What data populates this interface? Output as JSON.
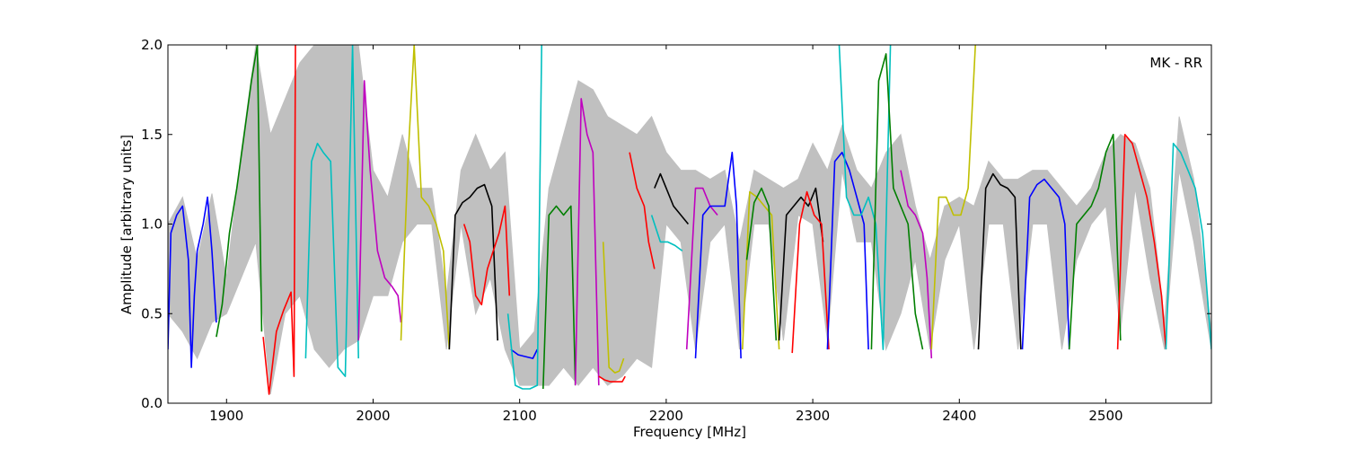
{
  "chart_data": {
    "type": "line",
    "xlabel": "Frequency [MHz]",
    "ylabel": "Amplitude [arbitrary units]",
    "annotation": "MK - RR",
    "xlim": [
      1860,
      2572
    ],
    "ylim": [
      0,
      2.0
    ],
    "xticks": [
      1900,
      2000,
      2100,
      2200,
      2300,
      2400,
      2500
    ],
    "yticks": [
      0.0,
      0.5,
      1.0,
      1.5,
      2.0
    ],
    "xtick_labels": [
      "1900",
      "2000",
      "2100",
      "2200",
      "2300",
      "2400",
      "2500"
    ],
    "ytick_labels": [
      "0.0",
      "0.5",
      "1.0",
      "1.5",
      "2.0"
    ],
    "grid": false,
    "envelope_color": "#c0c0c0",
    "envelope": {
      "x": [
        1860,
        1870,
        1880,
        1890,
        1900,
        1910,
        1920,
        1930,
        1940,
        1950,
        1960,
        1970,
        1980,
        1990,
        2000,
        2010,
        2020,
        2030,
        2040,
        2050,
        2060,
        2070,
        2080,
        2090,
        2100,
        2110,
        2120,
        2130,
        2140,
        2150,
        2160,
        2170,
        2180,
        2190,
        2200,
        2210,
        2220,
        2230,
        2240,
        2250,
        2260,
        2270,
        2280,
        2290,
        2300,
        2310,
        2320,
        2330,
        2340,
        2350,
        2360,
        2370,
        2380,
        2390,
        2400,
        2410,
        2420,
        2430,
        2440,
        2450,
        2460,
        2470,
        2480,
        2490,
        2500,
        2510,
        2520,
        2530,
        2540,
        2550,
        2560,
        2572
      ],
      "upper": [
        1.0,
        1.15,
        0.8,
        1.17,
        0.7,
        1.4,
        2.0,
        1.5,
        1.7,
        1.9,
        2.0,
        2.0,
        2.0,
        2.0,
        1.3,
        1.15,
        1.5,
        1.2,
        1.2,
        0.6,
        1.3,
        1.5,
        1.3,
        1.4,
        0.3,
        0.4,
        1.2,
        1.5,
        1.8,
        1.75,
        1.6,
        1.55,
        1.5,
        1.6,
        1.4,
        1.3,
        1.3,
        1.25,
        1.3,
        0.9,
        1.3,
        1.25,
        1.2,
        1.25,
        1.45,
        1.3,
        1.55,
        1.3,
        1.2,
        1.4,
        1.5,
        1.1,
        0.8,
        1.1,
        1.15,
        1.1,
        1.35,
        1.25,
        1.25,
        1.3,
        1.3,
        1.2,
        1.1,
        1.2,
        1.4,
        1.5,
        1.45,
        1.2,
        0.45,
        1.6,
        1.25,
        0.4
      ],
      "lower": [
        0.5,
        0.4,
        0.25,
        0.45,
        0.5,
        0.7,
        0.9,
        0.05,
        0.5,
        0.6,
        0.3,
        0.2,
        0.3,
        0.35,
        0.6,
        0.6,
        0.9,
        1.0,
        1.0,
        0.3,
        1.0,
        0.5,
        0.7,
        0.3,
        0.1,
        0.1,
        0.1,
        0.2,
        0.1,
        0.2,
        0.1,
        0.15,
        0.25,
        0.2,
        1.0,
        0.9,
        0.3,
        0.9,
        1.0,
        0.3,
        1.0,
        1.0,
        0.35,
        1.05,
        1.0,
        0.35,
        1.3,
        0.9,
        0.9,
        0.3,
        0.5,
        0.8,
        0.3,
        0.8,
        1.0,
        0.3,
        1.0,
        1.0,
        0.3,
        1.0,
        1.0,
        0.3,
        0.8,
        1.0,
        1.1,
        0.4,
        1.2,
        0.7,
        0.3,
        1.3,
        0.9,
        0.3
      ]
    },
    "series": [
      {
        "color": "#0000ff",
        "x": [
          1860,
          1862,
          1866,
          1870,
          1874,
          1876,
          1878,
          1880,
          1884,
          1887,
          1890,
          1893
        ],
        "y": [
          0.3,
          0.95,
          1.05,
          1.1,
          0.8,
          0.2,
          0.6,
          0.85,
          1.0,
          1.15,
          0.85,
          0.45
        ]
      },
      {
        "color": "#007f00",
        "x": [
          1893,
          1897,
          1902,
          1907,
          1912,
          1917,
          1921,
          1924
        ],
        "y": [
          0.37,
          0.55,
          0.95,
          1.2,
          1.5,
          1.8,
          2.0,
          0.4
        ]
      },
      {
        "color": "#ff0000",
        "x": [
          1925,
          1929,
          1934,
          1939,
          1944,
          1946,
          1947
        ],
        "y": [
          0.37,
          0.05,
          0.4,
          0.52,
          0.62,
          0.15,
          2.0
        ]
      },
      {
        "color": "#00bfbf",
        "x": [
          1954,
          1958,
          1962,
          1966,
          1971,
          1976,
          1981,
          1986,
          1990
        ],
        "y": [
          0.25,
          1.35,
          1.45,
          1.4,
          1.35,
          0.2,
          0.15,
          2.0,
          0.25
        ]
      },
      {
        "color": "#bf00bf",
        "x": [
          1990,
          1994,
          1998,
          2003,
          2008,
          2013,
          2017,
          2019
        ],
        "y": [
          0.35,
          1.8,
          1.3,
          0.85,
          0.7,
          0.65,
          0.6,
          0.45
        ]
      },
      {
        "color": "#bfbf00",
        "x": [
          2019,
          2024,
          2028,
          2033,
          2038,
          2043,
          2048,
          2052
        ],
        "y": [
          0.35,
          1.4,
          2.0,
          1.15,
          1.1,
          1.0,
          0.85,
          0.3
        ]
      },
      {
        "color": "#000000",
        "x": [
          2052,
          2056,
          2061,
          2066,
          2071,
          2076,
          2081,
          2085
        ],
        "y": [
          0.3,
          1.05,
          1.12,
          1.15,
          1.2,
          1.22,
          1.1,
          0.35
        ]
      },
      {
        "color": "#ff0000",
        "x": [
          2062,
          2066,
          2070,
          2074,
          2078,
          2082,
          2086,
          2090,
          2093
        ],
        "y": [
          1.0,
          0.9,
          0.6,
          0.55,
          0.75,
          0.85,
          0.95,
          1.1,
          0.6
        ]
      },
      {
        "color": "#0000ff",
        "x": [
          2094,
          2099,
          2104,
          2109,
          2112
        ],
        "y": [
          0.3,
          0.27,
          0.26,
          0.25,
          0.3
        ]
      },
      {
        "color": "#00bfbf",
        "x": [
          2092,
          2097,
          2102,
          2107,
          2112,
          2115
        ],
        "y": [
          0.5,
          0.1,
          0.08,
          0.08,
          0.1,
          2.0
        ]
      },
      {
        "color": "#007f00",
        "x": [
          2116,
          2120,
          2125,
          2130,
          2135,
          2138
        ],
        "y": [
          0.08,
          1.05,
          1.1,
          1.05,
          1.1,
          0.1
        ]
      },
      {
        "color": "#bf00bf",
        "x": [
          2138,
          2142,
          2146,
          2150,
          2154
        ],
        "y": [
          0.1,
          1.7,
          1.5,
          1.4,
          0.1
        ]
      },
      {
        "color": "#ff0000",
        "x": [
          2154,
          2158,
          2162,
          2166,
          2170,
          2172
        ],
        "y": [
          0.15,
          0.13,
          0.12,
          0.12,
          0.12,
          0.15
        ]
      },
      {
        "color": "#bfbf00",
        "x": [
          2157,
          2161,
          2165,
          2168,
          2171
        ],
        "y": [
          0.9,
          0.2,
          0.17,
          0.18,
          0.25
        ]
      },
      {
        "color": "#000000",
        "x": [
          2192,
          2196,
          2200,
          2205,
          2210,
          2215
        ],
        "y": [
          1.2,
          1.28,
          1.2,
          1.1,
          1.05,
          1.0
        ]
      },
      {
        "color": "#00bfbf",
        "x": [
          2190,
          2196,
          2201,
          2206,
          2211
        ],
        "y": [
          1.05,
          0.9,
          0.9,
          0.88,
          0.85
        ]
      },
      {
        "color": "#ff0000",
        "x": [
          2175,
          2180,
          2185,
          2188,
          2192
        ],
        "y": [
          1.4,
          1.2,
          1.1,
          0.9,
          0.75
        ]
      },
      {
        "color": "#bf00bf",
        "x": [
          2214,
          2220,
          2225,
          2230,
          2235
        ],
        "y": [
          0.3,
          1.2,
          1.2,
          1.1,
          1.05
        ]
      },
      {
        "color": "#0000ff",
        "x": [
          2220,
          2225,
          2230,
          2235,
          2240,
          2245,
          2248,
          2251
        ],
        "y": [
          0.25,
          1.05,
          1.1,
          1.1,
          1.1,
          1.4,
          1.1,
          0.25
        ]
      },
      {
        "color": "#bfbf00",
        "x": [
          2252,
          2257,
          2262,
          2267,
          2272,
          2277
        ],
        "y": [
          0.3,
          1.18,
          1.15,
          1.1,
          1.05,
          0.3
        ]
      },
      {
        "color": "#007f00",
        "x": [
          2255,
          2260,
          2265,
          2270,
          2275
        ],
        "y": [
          0.8,
          1.12,
          1.2,
          1.1,
          0.35
        ]
      },
      {
        "color": "#000000",
        "x": [
          2277,
          2282,
          2287,
          2292,
          2297,
          2302,
          2307
        ],
        "y": [
          0.35,
          1.05,
          1.1,
          1.15,
          1.1,
          1.2,
          0.9
        ]
      },
      {
        "color": "#ff0000",
        "x": [
          2286,
          2291,
          2296,
          2301,
          2306,
          2311
        ],
        "y": [
          0.28,
          1.0,
          1.18,
          1.05,
          1.0,
          0.3
        ]
      },
      {
        "color": "#0000ff",
        "x": [
          2310,
          2315,
          2320,
          2325,
          2330,
          2335,
          2338
        ],
        "y": [
          0.3,
          1.35,
          1.4,
          1.3,
          1.15,
          1.0,
          0.3
        ]
      },
      {
        "color": "#00bfbf",
        "x": [
          2318,
          2323,
          2328,
          2333,
          2338,
          2343,
          2348,
          2353
        ],
        "y": [
          2.0,
          1.15,
          1.05,
          1.05,
          1.15,
          1.0,
          0.3,
          2.0
        ]
      },
      {
        "color": "#007f00",
        "x": [
          2340,
          2345,
          2350,
          2355,
          2360,
          2365,
          2370,
          2375
        ],
        "y": [
          0.3,
          1.8,
          1.95,
          1.2,
          1.1,
          1.0,
          0.5,
          0.3
        ]
      },
      {
        "color": "#bf00bf",
        "x": [
          2360,
          2365,
          2370,
          2375,
          2378,
          2381
        ],
        "y": [
          1.3,
          1.1,
          1.05,
          0.95,
          0.7,
          0.25
        ]
      },
      {
        "color": "#bfbf00",
        "x": [
          2381,
          2386,
          2391,
          2396,
          2401,
          2406,
          2411
        ],
        "y": [
          0.3,
          1.15,
          1.15,
          1.05,
          1.05,
          1.2,
          2.0
        ]
      },
      {
        "color": "#000000",
        "x": [
          2413,
          2418,
          2423,
          2428,
          2433,
          2438,
          2442
        ],
        "y": [
          0.3,
          1.2,
          1.28,
          1.22,
          1.2,
          1.15,
          0.3
        ]
      },
      {
        "color": "#0000ff",
        "x": [
          2443,
          2448,
          2453,
          2458,
          2463,
          2468,
          2472,
          2475
        ],
        "y": [
          0.3,
          1.15,
          1.22,
          1.25,
          1.2,
          1.15,
          1.0,
          0.3
        ]
      },
      {
        "color": "#007f00",
        "x": [
          2475,
          2480,
          2485,
          2490,
          2495,
          2500,
          2505,
          2510
        ],
        "y": [
          0.3,
          1.0,
          1.05,
          1.1,
          1.2,
          1.4,
          1.5,
          0.35
        ]
      },
      {
        "color": "#ff0000",
        "x": [
          2508,
          2513,
          2518,
          2523,
          2528,
          2533,
          2538,
          2541
        ],
        "y": [
          0.3,
          1.5,
          1.45,
          1.3,
          1.15,
          0.9,
          0.6,
          0.3
        ]
      },
      {
        "color": "#00bfbf",
        "x": [
          2541,
          2546,
          2551,
          2556,
          2561,
          2566,
          2572
        ],
        "y": [
          0.3,
          1.45,
          1.4,
          1.3,
          1.2,
          0.95,
          0.3
        ]
      }
    ]
  }
}
